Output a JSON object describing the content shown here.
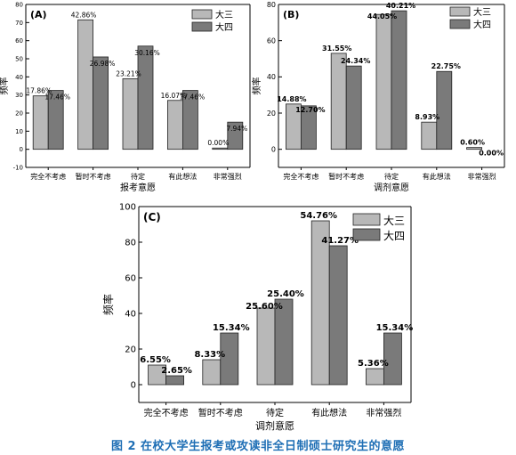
{
  "figure_caption": "图 2   在校大学生报考或攻读非全日制硕士研究生的意愿",
  "colors": {
    "senior3": "#b8b8b8",
    "senior4": "#7a7a7a",
    "axis": "#000000"
  },
  "chart_data": [
    {
      "panel": "(A)",
      "type": "bar",
      "ylabel": "频率",
      "xlabel": "报考意愿",
      "ylim": [
        -10,
        80
      ],
      "yticks": [
        -10,
        0,
        10,
        20,
        30,
        40,
        50,
        60,
        70,
        80
      ],
      "categories": [
        "完全不考虑",
        "暂时不考虑",
        "待定",
        "有此想法",
        "非常强烈"
      ],
      "series": [
        {
          "name": "大三",
          "values": [
            29.5,
            71.5,
            39,
            27,
            0.7
          ],
          "labels": [
            "17.86%",
            "42.86%",
            "23.21%",
            "16.07%",
            "0.00%"
          ]
        },
        {
          "name": "大四",
          "values": [
            32.5,
            51,
            57,
            32.5,
            15
          ],
          "labels": [
            "17.46%",
            "26.98%",
            "30.16%",
            "17.46%",
            "7.94%"
          ]
        }
      ]
    },
    {
      "panel": "(B)",
      "type": "bar",
      "ylabel": "频率",
      "xlabel": "调剂意愿",
      "ylim": [
        -10,
        80
      ],
      "yticks": [
        0,
        20,
        40,
        60,
        80
      ],
      "categories": [
        "完全不考虑",
        "暂时不考虑",
        "待定",
        "有此想法",
        "非常强烈"
      ],
      "series": [
        {
          "name": "大三",
          "values": [
            25,
            53,
            74.5,
            15,
            1
          ],
          "labels": [
            "14.88%",
            "31.55%",
            "44.05%",
            "8.93%",
            "0.60%"
          ]
        },
        {
          "name": "大四",
          "values": [
            24,
            46,
            76.5,
            43,
            0
          ],
          "labels": [
            "12.70%",
            "24.34%",
            "40.21%",
            "22.75%",
            "0.00%"
          ]
        }
      ]
    },
    {
      "panel": "(C)",
      "type": "bar",
      "ylabel": "频率",
      "xlabel": "调剂意愿",
      "ylim": [
        -10,
        100
      ],
      "yticks": [
        0,
        20,
        40,
        60,
        80,
        100
      ],
      "categories": [
        "完全不考虑",
        "暂时不考虑",
        "待定",
        "有此想法",
        "非常强烈"
      ],
      "series": [
        {
          "name": "大三",
          "values": [
            11,
            14,
            43,
            92,
            9
          ],
          "labels": [
            "6.55%",
            "8.33%",
            "25.60%",
            "54.76%",
            "5.36%"
          ]
        },
        {
          "name": "大四",
          "values": [
            5,
            29,
            48,
            78,
            29
          ],
          "labels": [
            "2.65%",
            "15.34%",
            "25.40%",
            "41.27%",
            "15.34%"
          ]
        }
      ]
    }
  ]
}
